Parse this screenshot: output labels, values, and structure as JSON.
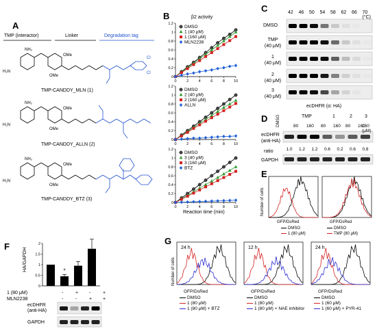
{
  "panels": {
    "A": {
      "letter": "A",
      "header_interactor": "TMP (interactor)",
      "header_linker": "Linker",
      "header_tag": "Degradation tag",
      "compounds": [
        {
          "name": "TMP-CANDDY_MLN (1)"
        },
        {
          "name": "TMP-CANDDY_ALLN (2)"
        },
        {
          "name": "TMP-CANDDY_BTZ (3)"
        }
      ],
      "atoms": {
        "nh2": "NH₂",
        "h2n": "H₂N",
        "n": "N",
        "ome": "OMe",
        "o": "O",
        "h": "H",
        "cl": "Cl"
      }
    },
    "B": {
      "letter": "B",
      "title": "β2 activity",
      "xlabel": "Reaction time (min)"
    },
    "C": {
      "letter": "C",
      "temps": [
        "42",
        "46",
        "50",
        "54",
        "58",
        "62",
        "66",
        "70 (°C)"
      ],
      "rows": [
        "DMSO",
        "TMP",
        "(40 μM)",
        "1",
        "(40 μM)",
        "2",
        "(40 μM)",
        "3",
        "(40 μM)"
      ],
      "caption": "ecDHFR (α: HA)"
    },
    "D": {
      "letter": "D",
      "col_dmso": "DMSO",
      "groups": [
        "TMP",
        "1",
        "2",
        "3"
      ],
      "concs": [
        "80",
        "160",
        "80",
        "160",
        "80",
        "160",
        "160 (μM)"
      ],
      "row1": "ecDHFR",
      "row1b": "(anti-HA)",
      "ratio_label": "ratio",
      "ratios": [
        "1.0",
        "1.2",
        "1.2",
        "0.6",
        "0.2",
        "0.6",
        "0.8"
      ],
      "row2": "GAPDH"
    },
    "E": {
      "letter": "E",
      "ylabel": "Number of cells",
      "xlabel": "GFP/DsRed",
      "legend_left": [
        "DMSO",
        "1 (80 μM)"
      ],
      "legend_right": [
        "DMSO",
        "TMP (80 μM)"
      ]
    },
    "F": {
      "letter": "F",
      "ylabel": "HA/GAPDH",
      "star": "*",
      "row1_label": "1 (80 μM)",
      "row2_label": "MLN2238",
      "row1_signs": [
        "-",
        "+",
        "-",
        "+"
      ],
      "row2_signs": [
        "-",
        "-",
        "+",
        "+"
      ],
      "blot1": "ecDHFR",
      "blot1b": "(anti-HA)",
      "blot2": "GAPDH",
      "ticks": [
        "0",
        "0.5",
        "1",
        "1.5",
        "2"
      ]
    },
    "G": {
      "letter": "G",
      "ylabel": "Number of cells",
      "xlabel": "GFP/DsRed",
      "plots": [
        {
          "time": "24 h",
          "legend": [
            "DMSO",
            "1 (80 μM)",
            "1 (80 μM) + BTZ"
          ]
        },
        {
          "time": "12 h",
          "legend": [
            "DMSO",
            "1 (80 μM)",
            "1 (80 μM) + NAE inhibitor"
          ]
        },
        {
          "time": "24 h",
          "legend": [
            "DMSO",
            "1 (60 μM)",
            "1 (60 μM) + PYR-41"
          ]
        }
      ]
    }
  },
  "chart_data": [
    {
      "type": "line",
      "title": "β2 activity",
      "xlabel": "Reaction time (min)",
      "ylabel": "",
      "xlim": [
        0,
        10
      ],
      "ylim": [
        0,
        1.2
      ],
      "x": [
        0,
        1,
        2,
        3,
        4,
        5,
        6,
        7,
        8,
        9,
        10
      ],
      "series": [
        {
          "name": "DMSO",
          "color": "#000000",
          "marker": "circle",
          "values": [
            0,
            0.11,
            0.22,
            0.32,
            0.43,
            0.54,
            0.65,
            0.76,
            0.86,
            0.95,
            1.05
          ]
        },
        {
          "name": "1 (40 μM)",
          "color": "#2e9b2e",
          "marker": "triangle",
          "values": [
            0,
            0.1,
            0.2,
            0.3,
            0.4,
            0.5,
            0.6,
            0.7,
            0.8,
            0.9,
            1.0
          ]
        },
        {
          "name": "1 (160 μM)",
          "color": "#d42020",
          "marker": "square",
          "values": [
            0,
            0.09,
            0.18,
            0.27,
            0.36,
            0.45,
            0.54,
            0.63,
            0.72,
            0.81,
            0.9
          ]
        },
        {
          "name": "MLN2238",
          "color": "#1f5fd6",
          "marker": "diamond",
          "values": [
            0,
            0.03,
            0.06,
            0.08,
            0.11,
            0.13,
            0.15,
            0.18,
            0.2,
            0.23,
            0.25
          ]
        }
      ]
    },
    {
      "type": "line",
      "title": "",
      "xlabel": "Reaction time (min)",
      "xlim": [
        0,
        10
      ],
      "ylim": [
        0,
        1.2
      ],
      "x": [
        0,
        1,
        2,
        3,
        4,
        5,
        6,
        7,
        8,
        9,
        10
      ],
      "series": [
        {
          "name": "DMSO",
          "color": "#000000",
          "marker": "circle",
          "values": [
            0,
            0.1,
            0.2,
            0.3,
            0.4,
            0.5,
            0.6,
            0.7,
            0.8,
            0.9,
            1.0
          ]
        },
        {
          "name": "2 (40 μM)",
          "color": "#2e9b2e",
          "marker": "triangle",
          "values": [
            0,
            0.09,
            0.18,
            0.27,
            0.36,
            0.45,
            0.54,
            0.63,
            0.72,
            0.8,
            0.88
          ]
        },
        {
          "name": "2 (160 μM)",
          "color": "#d42020",
          "marker": "square",
          "values": [
            0,
            0.08,
            0.16,
            0.25,
            0.33,
            0.41,
            0.49,
            0.57,
            0.65,
            0.73,
            0.81
          ]
        },
        {
          "name": "ALLN",
          "color": "#1f5fd6",
          "marker": "diamond",
          "values": [
            0,
            0.01,
            0.02,
            0.03,
            0.03,
            0.04,
            0.05,
            0.06,
            0.07,
            0.07,
            0.08
          ]
        }
      ]
    },
    {
      "type": "line",
      "title": "",
      "xlabel": "Reaction time (min)",
      "xlim": [
        0,
        10
      ],
      "ylim": [
        0,
        1.2
      ],
      "x": [
        0,
        1,
        2,
        3,
        4,
        5,
        6,
        7,
        8,
        9,
        10
      ],
      "series": [
        {
          "name": "DMSO",
          "color": "#000000",
          "marker": "circle",
          "values": [
            0,
            0.1,
            0.2,
            0.3,
            0.4,
            0.5,
            0.6,
            0.7,
            0.8,
            0.9,
            1.0
          ]
        },
        {
          "name": "3 (40 μM)",
          "color": "#2e9b2e",
          "marker": "triangle",
          "values": [
            0,
            0.08,
            0.16,
            0.24,
            0.32,
            0.4,
            0.48,
            0.56,
            0.64,
            0.72,
            0.8
          ]
        },
        {
          "name": "3 (160 μM)",
          "color": "#d42020",
          "marker": "square",
          "values": [
            0,
            0.07,
            0.14,
            0.21,
            0.28,
            0.35,
            0.42,
            0.49,
            0.56,
            0.63,
            0.7
          ]
        },
        {
          "name": "BTZ",
          "color": "#1f5fd6",
          "marker": "diamond",
          "values": [
            0,
            0.005,
            0.01,
            0.015,
            0.02,
            0.025,
            0.03,
            0.035,
            0.04,
            0.045,
            0.05
          ]
        }
      ]
    },
    {
      "type": "bar",
      "ylabel": "HA/GAPDH",
      "categories": [
        "-/-",
        "+/-",
        "-/+",
        "+/+"
      ],
      "values": [
        1.0,
        0.45,
        0.95,
        1.75
      ],
      "errors": [
        0,
        0.08,
        0.2,
        0.45
      ],
      "ylim": [
        0,
        2
      ]
    }
  ]
}
